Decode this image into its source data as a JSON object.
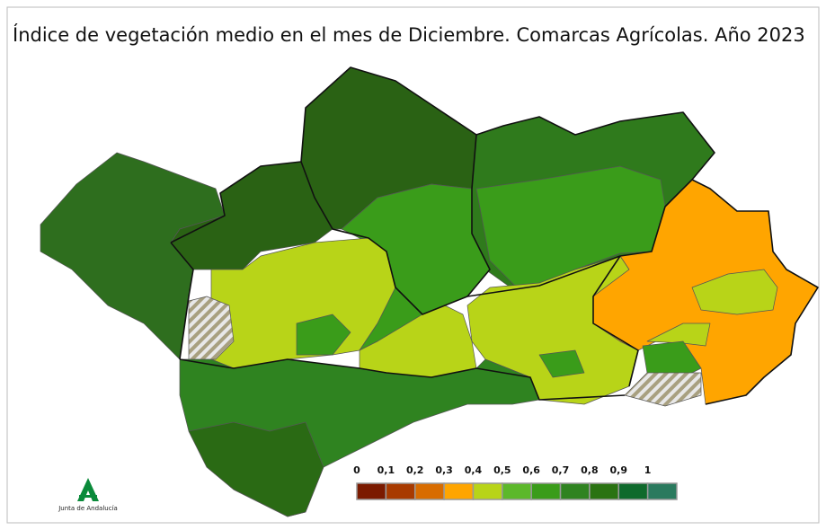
{
  "title": "Índice de vegetación medio en el mes de Diciembre. Comarcas Agrícolas. Año 2023",
  "legend": {
    "labels": [
      "0",
      "0,1",
      "0,2",
      "0,3",
      "0,4",
      "0,5",
      "0,6",
      "0,7",
      "0,8",
      "0,9",
      "1"
    ],
    "colors": [
      "#7b1a00",
      "#a83a00",
      "#d86c00",
      "#ffa500",
      "#b8d418",
      "#5cb82a",
      "#3a9c1a",
      "#2f8320",
      "#2a7312",
      "#0f6a2c",
      "#2a7a5e"
    ]
  },
  "logo": {
    "text": "Junta de Andalucía"
  }
}
